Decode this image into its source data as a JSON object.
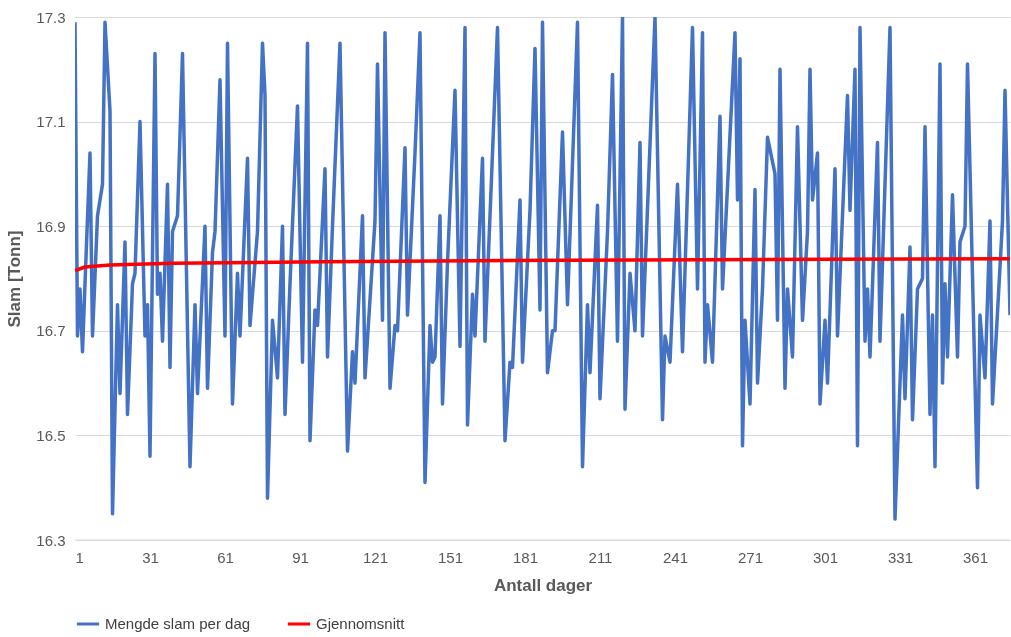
{
  "chart_data": {
    "type": "line",
    "xlabel": "Antall dager",
    "ylabel": "Slam [Tonn]",
    "xlim": [
      1,
      375
    ],
    "xticks": [
      1,
      31,
      61,
      91,
      121,
      151,
      181,
      211,
      241,
      271,
      301,
      331,
      361
    ],
    "ylim": [
      16.3,
      17.3
    ],
    "yticks": [
      16.3,
      16.5,
      16.7,
      16.9,
      17.1,
      17.3
    ],
    "grid": "y",
    "legend": "bottom",
    "line_style": "solid",
    "series": [
      {
        "name": "Mengde slam per dag",
        "color": "#4472c4",
        "x": [
          1,
          2,
          3,
          4,
          5,
          7,
          8,
          10,
          12,
          13,
          15,
          16,
          18,
          19,
          21,
          22,
          24,
          25,
          27,
          29,
          30,
          31,
          33,
          34,
          35,
          36,
          38,
          39,
          40,
          42,
          44,
          47,
          49,
          50,
          53,
          54,
          56,
          57,
          59,
          61,
          62,
          64,
          66,
          67,
          70,
          71,
          74,
          76,
          77,
          78,
          80,
          82,
          84,
          85,
          87,
          90,
          92,
          94,
          95,
          97,
          98,
          101,
          102,
          104,
          107,
          110,
          112,
          113,
          116,
          117,
          121,
          122,
          124,
          125,
          127,
          129,
          130,
          133,
          134,
          137,
          139,
          141,
          143,
          144,
          145,
          147,
          148,
          150,
          153,
          155,
          157,
          158,
          160,
          161,
          164,
          165,
          167,
          170,
          173,
          175,
          176,
          179,
          180,
          183,
          185,
          187,
          188,
          190,
          192,
          193,
          196,
          198,
          200,
          202,
          204,
          206,
          207,
          210,
          211,
          214,
          216,
          218,
          220,
          221,
          223,
          225,
          227,
          228,
          233,
          236,
          237,
          239,
          242,
          244,
          248,
          250,
          252,
          253,
          254,
          256,
          259,
          260,
          265,
          266,
          267,
          268,
          269,
          271,
          273,
          274,
          276,
          278,
          281,
          282,
          283,
          285,
          286,
          288,
          290,
          292,
          294,
          295,
          296,
          298,
          299,
          301,
          302,
          305,
          306,
          310,
          311,
          313,
          314,
          315,
          317,
          318,
          319,
          322,
          323,
          327,
          329,
          332,
          333,
          335,
          336,
          338,
          340,
          341,
          343,
          344,
          345,
          347,
          348,
          349,
          350,
          352,
          354,
          355,
          357,
          358,
          362,
          363,
          365,
          367,
          368,
          372,
          373,
          375
        ],
        "values": [
          17.29,
          16.69,
          16.78,
          16.66,
          16.79,
          17.04,
          16.69,
          16.92,
          16.98,
          17.29,
          17.12,
          16.35,
          16.75,
          16.58,
          16.87,
          16.54,
          16.79,
          16.81,
          17.1,
          16.69,
          16.75,
          16.46,
          17.23,
          16.77,
          16.81,
          16.68,
          16.98,
          16.63,
          16.89,
          16.92,
          17.23,
          16.44,
          16.75,
          16.58,
          16.9,
          16.59,
          16.85,
          16.89,
          17.18,
          16.69,
          17.25,
          16.56,
          16.81,
          16.69,
          17.03,
          16.71,
          16.89,
          17.25,
          17.15,
          16.38,
          16.72,
          16.61,
          16.9,
          16.54,
          16.79,
          17.13,
          16.64,
          17.25,
          16.49,
          16.74,
          16.71,
          17.01,
          16.65,
          16.9,
          17.25,
          16.47,
          16.66,
          16.6,
          16.92,
          16.61,
          16.91,
          17.21,
          16.72,
          17.27,
          16.59,
          16.71,
          16.7,
          17.05,
          16.73,
          17.04,
          17.27,
          16.41,
          16.71,
          16.64,
          16.65,
          16.92,
          16.56,
          16.83,
          17.16,
          16.67,
          17.28,
          16.52,
          16.77,
          16.69,
          17.03,
          16.68,
          16.92,
          17.28,
          16.49,
          16.64,
          16.63,
          16.95,
          16.64,
          16.93,
          17.24,
          16.74,
          17.29,
          16.62,
          16.7,
          16.7,
          17.08,
          16.75,
          17.02,
          17.29,
          16.44,
          16.75,
          16.62,
          16.94,
          16.57,
          16.89,
          17.19,
          16.68,
          17.3,
          16.55,
          16.81,
          16.7,
          17.06,
          16.69,
          17.3,
          16.53,
          16.69,
          16.64,
          16.98,
          16.66,
          17.28,
          16.78,
          17.27,
          16.64,
          16.75,
          16.64,
          17.11,
          16.78,
          17.27,
          16.95,
          17.22,
          16.48,
          16.72,
          16.56,
          16.97,
          16.6,
          16.78,
          17.07,
          17.0,
          16.72,
          17.2,
          16.59,
          16.78,
          16.65,
          17.09,
          16.72,
          16.89,
          17.2,
          16.95,
          17.04,
          16.56,
          16.72,
          16.6,
          17.01,
          16.69,
          17.15,
          16.93,
          17.2,
          16.48,
          17.28,
          16.68,
          16.78,
          16.65,
          17.06,
          16.68,
          17.28,
          16.34,
          16.73,
          16.57,
          16.86,
          16.53,
          16.78,
          16.8,
          17.09,
          16.54,
          16.73,
          16.44,
          17.21,
          16.6,
          16.79,
          16.65,
          16.96,
          16.65,
          16.87,
          16.9,
          17.21,
          16.4,
          16.73,
          16.61,
          16.91,
          16.56,
          16.91,
          17.16,
          16.73
        ]
      },
      {
        "name": "Gjennomsnitt",
        "color": "#ff0000",
        "x": [
          1,
          5,
          15,
          40,
          100,
          200,
          300,
          375
        ],
        "values": [
          16.815,
          16.822,
          16.826,
          16.829,
          16.832,
          16.835,
          16.837,
          16.838
        ]
      }
    ]
  }
}
